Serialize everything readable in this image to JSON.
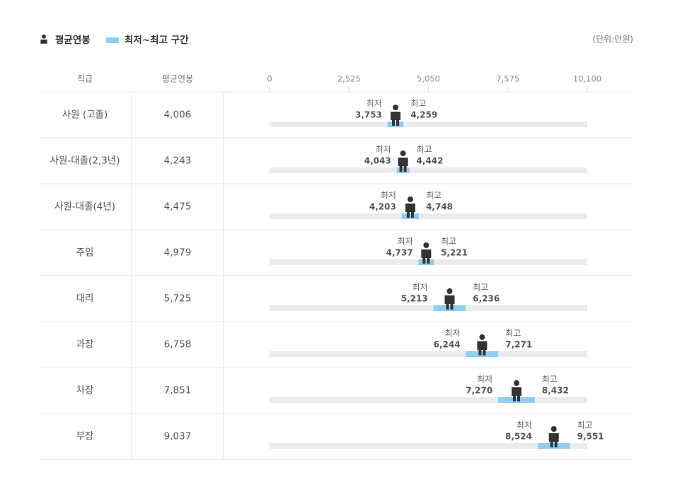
{
  "chart_data": {
    "type": "salary-range",
    "legend": {
      "average": "평균연봉",
      "range": "최저~최고 구간",
      "range_color": "#8ecdf5"
    },
    "unit": "(단위:만원)",
    "columns": [
      "직급",
      "평균연봉"
    ],
    "min_label": "최저",
    "max_label": "최고",
    "xlim": [
      0,
      10100
    ],
    "xticks": [
      0,
      {
        "value": 2525,
        "label": "2,525"
      },
      {
        "value": 5050,
        "label": "5,050"
      },
      {
        "value": 7575,
        "label": "7,575"
      },
      {
        "value": 10100,
        "label": "10,100"
      }
    ],
    "categories": [
      "사원 (고졸)",
      "사원-대졸(2,3년)",
      "사원-대졸(4년)",
      "주임",
      "대리",
      "과장",
      "차장",
      "부장"
    ],
    "average": {
      "values": [
        4006,
        4243,
        4475,
        4979,
        5725,
        6758,
        7851,
        9037
      ],
      "value_labels": [
        "4,006",
        "4,243",
        "4,475",
        "4,979",
        "5,725",
        "6,758",
        "7,851",
        "9,037"
      ]
    },
    "min": {
      "values": [
        3753,
        4043,
        4203,
        4737,
        5213,
        6244,
        7270,
        8524
      ],
      "value_labels": [
        "3,753",
        "4,043",
        "4,203",
        "4,737",
        "5,213",
        "6,244",
        "7,270",
        "8,524"
      ]
    },
    "max": {
      "values": [
        4259,
        4442,
        4748,
        5221,
        6236,
        7271,
        8432,
        9551
      ],
      "value_labels": [
        "4,259",
        "4,442",
        "4,748",
        "5,221",
        "6,236",
        "7,271",
        "8,432",
        "9,551"
      ]
    }
  }
}
